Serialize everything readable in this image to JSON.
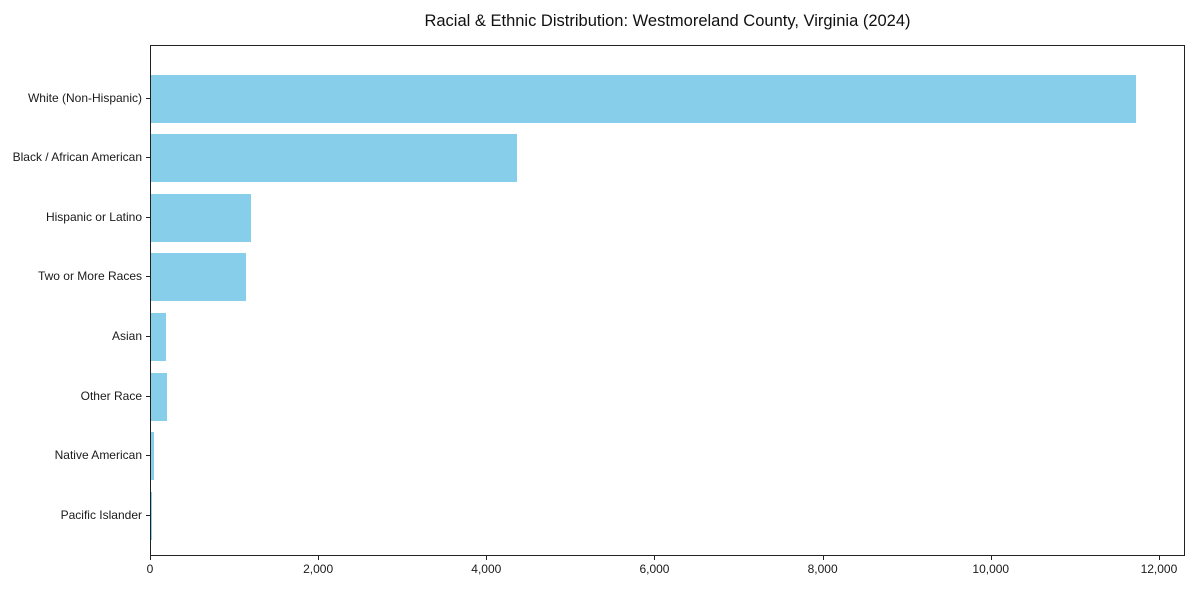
{
  "chart_data": {
    "type": "bar",
    "orientation": "horizontal",
    "title": "Racial & Ethnic Distribution: Westmoreland County, Virginia (2024)",
    "categories": [
      "White (Non-Hispanic)",
      "Black / African American",
      "Hispanic or Latino",
      "Two or More Races",
      "Asian",
      "Other Race",
      "Native American",
      "Pacific Islander"
    ],
    "values": [
      11720,
      4350,
      1190,
      1130,
      180,
      185,
      30,
      5
    ],
    "xlabel": "",
    "ylabel": "",
    "xlim": [
      0,
      12310
    ],
    "x_ticks": [
      0,
      2000,
      4000,
      6000,
      8000,
      10000,
      12000
    ],
    "x_tick_labels": [
      "0",
      "2,000",
      "4,000",
      "6,000",
      "8,000",
      "10,000",
      "12,000"
    ],
    "bar_color": "#87CEEB",
    "grid": false,
    "legend_position": "none",
    "background": "#ffffff"
  }
}
